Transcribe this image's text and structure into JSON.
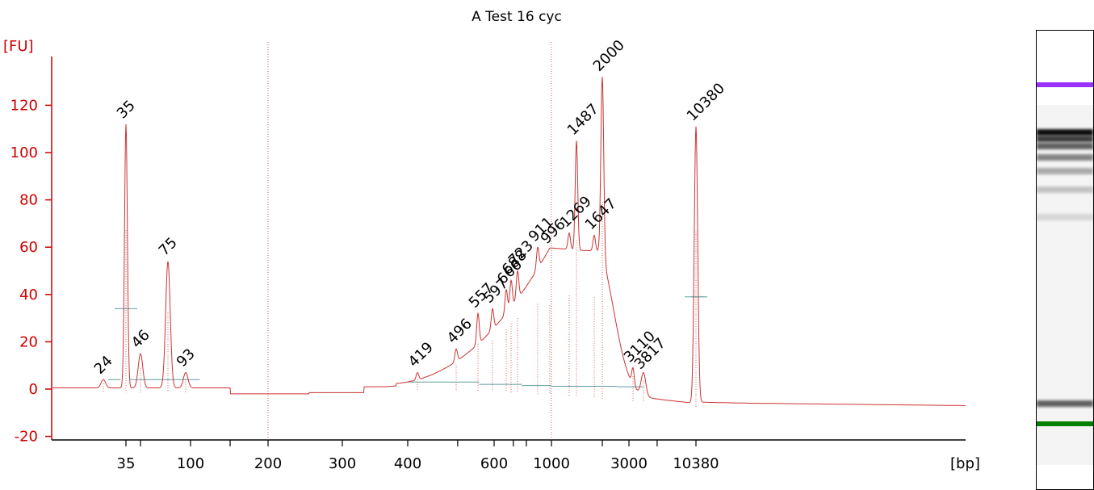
{
  "chart_data": {
    "type": "line",
    "title": "A Test 16 cyc",
    "xlabel": "[bp]",
    "ylabel": "[FU]",
    "ylim": [
      -20,
      135
    ],
    "yticks": [
      "-20",
      "0",
      "20",
      "40",
      "60",
      "80",
      "100",
      "120"
    ],
    "xticks": [
      "35",
      "100",
      "200",
      "300",
      "400",
      "600",
      "1000",
      "3000",
      "10380"
    ],
    "colors": {
      "axis": "#cc0000",
      "trace": "#cc3333",
      "baseline": "#5f9ea0",
      "lower_marker": "#008000",
      "upper_marker": "#9932cc"
    },
    "peaks": [
      {
        "label": "24",
        "size": 24,
        "fu": 4
      },
      {
        "label": "35",
        "size": 35,
        "fu": 112,
        "marker": "lower"
      },
      {
        "label": "46",
        "size": 46,
        "fu": 15
      },
      {
        "label": "75",
        "size": 75,
        "fu": 54
      },
      {
        "label": "93",
        "size": 93,
        "fu": 7
      },
      {
        "label": "419",
        "size": 419,
        "fu": 7
      },
      {
        "label": "496",
        "size": 496,
        "fu": 17
      },
      {
        "label": "557",
        "size": 557,
        "fu": 32
      },
      {
        "label": "597",
        "size": 597,
        "fu": 34
      },
      {
        "label": "666",
        "size": 666,
        "fu": 42
      },
      {
        "label": "688",
        "size": 688,
        "fu": 46
      },
      {
        "label": "723",
        "size": 723,
        "fu": 50
      },
      {
        "label": "911",
        "size": 911,
        "fu": 60
      },
      {
        "label": "996",
        "size": 996,
        "fu": 59
      },
      {
        "label": "1269",
        "size": 1269,
        "fu": 66
      },
      {
        "label": "1487",
        "size": 1487,
        "fu": 105
      },
      {
        "label": "1647",
        "size": 1647,
        "fu": 65
      },
      {
        "label": "2000",
        "size": 2000,
        "fu": 132
      },
      {
        "label": "3110",
        "size": 3110,
        "fu": 9
      },
      {
        "label": "3817",
        "size": 3817,
        "fu": 6
      },
      {
        "label": "10380",
        "size": 10380,
        "fu": 111,
        "marker": "upper"
      }
    ]
  },
  "gel": {
    "bands": [
      {
        "pos": 0.112,
        "color": "#9b30ff",
        "strength": 1.0
      },
      {
        "pos": 0.215,
        "color": "#000000",
        "strength": 0.95
      },
      {
        "pos": 0.228,
        "color": "#000000",
        "strength": 0.75
      },
      {
        "pos": 0.245,
        "color": "#000000",
        "strength": 0.6
      },
      {
        "pos": 0.27,
        "color": "#000000",
        "strength": 0.45
      },
      {
        "pos": 0.3,
        "color": "#000000",
        "strength": 0.3
      },
      {
        "pos": 0.34,
        "color": "#000000",
        "strength": 0.2
      },
      {
        "pos": 0.4,
        "color": "#000000",
        "strength": 0.12
      },
      {
        "pos": 0.806,
        "color": "#000000",
        "strength": 0.6
      },
      {
        "pos": 0.852,
        "color": "#008000",
        "strength": 1.0
      }
    ]
  }
}
